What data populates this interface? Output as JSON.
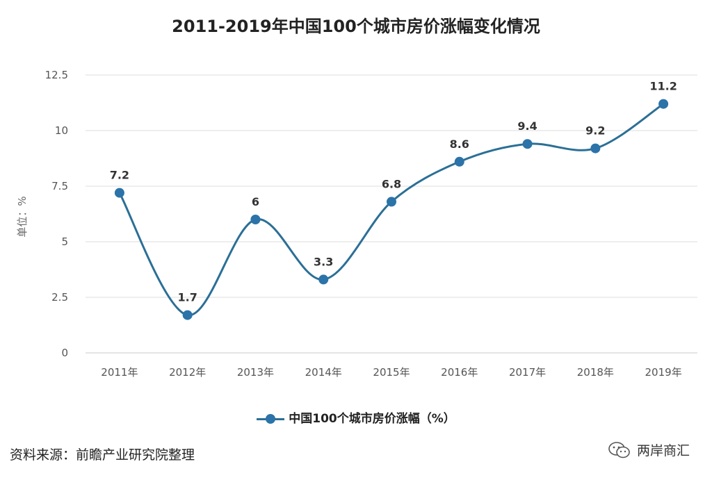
{
  "title": "2011-2019年中国100个城市房价涨幅变化情况",
  "legend_label": "中国100个城市房价涨幅（%）",
  "source": "资料来源：前瞻产业研究院整理",
  "badge": {
    "text": "两岸商汇",
    "icon": "wechat-icon"
  },
  "colors": {
    "line": "#2b6f96",
    "point": "#2b73a8",
    "grid": "#dddddd"
  },
  "chart_data": {
    "type": "line",
    "title": "2011-2019年中国100个城市房价涨幅变化情况",
    "categories": [
      "2011年",
      "2012年",
      "2013年",
      "2014年",
      "2015年",
      "2016年",
      "2017年",
      "2018年",
      "2019年"
    ],
    "series": [
      {
        "name": "中国100个城市房价涨幅（%）",
        "values": [
          7.2,
          1.7,
          6,
          3.3,
          6.8,
          8.6,
          9.4,
          9.2,
          11.2
        ]
      }
    ],
    "data_labels": [
      "7.2",
      "1.7",
      "6",
      "3.3",
      "6.8",
      "8.6",
      "9.4",
      "9.2",
      "11.2"
    ],
    "xlabel": "",
    "ylabel": "单位：%",
    "ylim": [
      0,
      12.5
    ],
    "yticks": [
      "0",
      "2.5",
      "5",
      "7.5",
      "10",
      "12.5"
    ],
    "grid": true,
    "legend": "bottom",
    "smooth": true
  }
}
